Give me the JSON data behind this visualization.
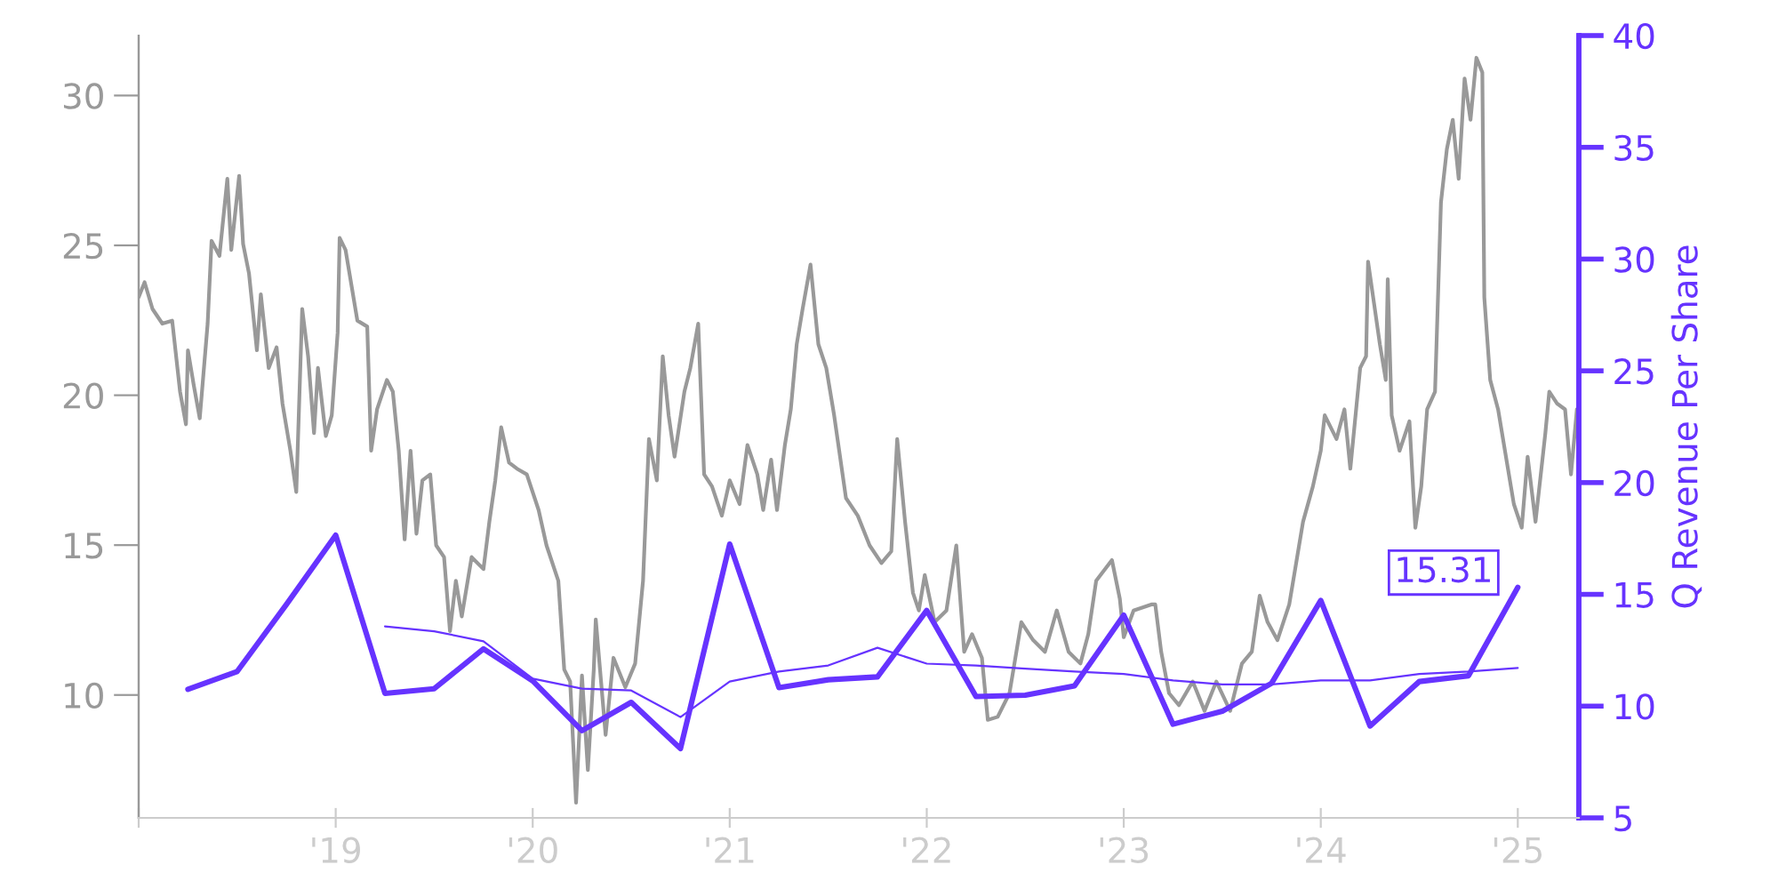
{
  "chart_data": {
    "type": "line",
    "y2label": "Q Revenue Per Share",
    "series": [
      {
        "color": "#999999",
        "x": [
          2018.0,
          2018.03,
          2018.07,
          2018.12,
          2018.17,
          2018.21,
          2018.24,
          2018.25,
          2018.28,
          2018.31,
          2018.35,
          2018.37,
          2018.41,
          2018.45,
          2018.47,
          2018.51,
          2018.53,
          2018.56,
          2018.6,
          2018.62,
          2018.66,
          2018.7,
          2018.73,
          2018.77,
          2018.8,
          2018.83,
          2018.86,
          2018.89,
          2018.91,
          2018.95,
          2018.98,
          2019.01,
          2019.02,
          2019.05,
          2019.08,
          2019.11,
          2019.16,
          2019.18,
          2019.21,
          2019.26,
          2019.29,
          2019.32,
          2019.35,
          2019.38,
          2019.41,
          2019.44,
          2019.48,
          2019.51,
          2019.55,
          2019.58,
          2019.61,
          2019.64,
          2019.69,
          2019.75,
          2019.78,
          2019.81,
          2019.84,
          2019.88,
          2019.92,
          2019.97,
          2020.03,
          2020.07,
          2020.13,
          2020.16,
          2020.19,
          2020.22,
          2020.25,
          2020.28,
          2020.31,
          2020.32,
          2020.37,
          2020.41,
          2020.47,
          2020.52,
          2020.56,
          2020.59,
          2020.63,
          2020.66,
          2020.69,
          2020.72,
          2020.77,
          2020.8,
          2020.84,
          2020.87,
          2020.91,
          2020.96,
          2021.0,
          2021.05,
          2021.09,
          2021.14,
          2021.17,
          2021.21,
          2021.24,
          2021.28,
          2021.31,
          2021.34,
          2021.37,
          2021.41,
          2021.45,
          2021.49,
          2021.53,
          2021.59,
          2021.65,
          2021.71,
          2021.77,
          2021.82,
          2021.85,
          2021.89,
          2021.93,
          2021.96,
          2021.99,
          2022.04,
          2022.1,
          2022.15,
          2022.19,
          2022.23,
          2022.28,
          2022.31,
          2022.36,
          2022.42,
          2022.48,
          2022.54,
          2022.6,
          2022.66,
          2022.72,
          2022.78,
          2022.82,
          2022.86,
          2022.94,
          2022.98,
          2023.0,
          2023.05,
          2023.14,
          2023.16,
          2023.19,
          2023.23,
          2023.28,
          2023.35,
          2023.41,
          2023.47,
          2023.54,
          2023.6,
          2023.65,
          2023.69,
          2023.73,
          2023.78,
          2023.84,
          2023.87,
          2023.91,
          2023.96,
          2024.0,
          2024.02,
          2024.08,
          2024.12,
          2024.15,
          2024.2,
          2024.23,
          2024.24,
          2024.27,
          2024.3,
          2024.33,
          2024.34,
          2024.36,
          2024.4,
          2024.45,
          2024.48,
          2024.51,
          2024.54,
          2024.58,
          2024.61,
          2024.64,
          2024.67,
          2024.7,
          2024.73,
          2024.76,
          2024.79,
          2024.82,
          2024.83,
          2024.86,
          2024.9,
          2024.95,
          2024.98,
          2025.02,
          2025.05,
          2025.09,
          2025.14,
          2025.16,
          2025.2,
          2025.24,
          2025.27,
          2025.3
        ],
        "values": [
          23.27,
          23.77,
          22.88,
          22.39,
          22.49,
          20.12,
          19.03,
          21.5,
          20.32,
          19.23,
          22.39,
          25.15,
          24.65,
          27.22,
          24.85,
          27.32,
          25.05,
          24.06,
          21.5,
          23.37,
          20.91,
          21.6,
          19.72,
          18.15,
          16.77,
          22.88,
          21.3,
          18.74,
          20.91,
          18.64,
          19.33,
          22.09,
          25.25,
          24.85,
          23.67,
          22.49,
          22.29,
          18.15,
          19.53,
          20.51,
          20.12,
          18.15,
          15.19,
          18.15,
          15.38,
          17.16,
          17.36,
          14.99,
          14.6,
          12.13,
          13.81,
          12.62,
          14.6,
          14.2,
          15.78,
          17.16,
          18.93,
          17.75,
          17.55,
          17.36,
          16.17,
          14.99,
          13.81,
          10.85,
          10.45,
          6.41,
          10.65,
          7.5,
          10.85,
          12.52,
          8.67,
          11.24,
          10.26,
          11.05,
          13.81,
          18.54,
          17.16,
          21.3,
          19.33,
          17.95,
          20.12,
          20.91,
          22.39,
          17.36,
          16.96,
          15.98,
          17.16,
          16.37,
          18.34,
          17.36,
          16.17,
          17.85,
          16.17,
          18.34,
          19.53,
          21.7,
          22.88,
          24.36,
          21.7,
          20.91,
          19.33,
          16.57,
          15.98,
          14.99,
          14.4,
          14.79,
          18.54,
          15.78,
          13.41,
          12.82,
          14.0,
          12.43,
          12.82,
          14.99,
          11.44,
          12.03,
          11.24,
          9.17,
          9.27,
          10.06,
          12.43,
          11.83,
          11.44,
          12.82,
          11.44,
          11.05,
          12.03,
          13.81,
          14.5,
          13.21,
          11.93,
          12.82,
          13.02,
          13.02,
          11.44,
          10.06,
          9.66,
          10.45,
          9.47,
          10.45,
          9.47,
          11.05,
          11.44,
          13.31,
          12.43,
          11.83,
          13.02,
          14.2,
          15.78,
          16.96,
          18.15,
          19.33,
          18.54,
          19.53,
          17.55,
          20.91,
          21.3,
          24.46,
          23.08,
          21.7,
          20.51,
          23.87,
          19.33,
          18.15,
          19.13,
          15.58,
          16.96,
          19.53,
          20.12,
          26.43,
          28.21,
          29.19,
          27.22,
          30.57,
          29.19,
          31.26,
          30.77,
          23.27,
          20.51,
          19.53,
          17.55,
          16.37,
          15.58,
          17.95,
          15.78,
          18.74,
          20.12,
          19.72,
          19.53,
          17.36,
          19.53
        ]
      },
      {
        "color": "#6633ff",
        "axis": "y2",
        "x": [
          2018.25,
          2018.5,
          2018.75,
          2019.0,
          2019.25,
          2019.5,
          2019.75,
          2020.0,
          2020.25,
          2020.5,
          2020.75,
          2021.0,
          2021.25,
          2021.5,
          2021.75,
          2022.0,
          2022.25,
          2022.5,
          2022.75,
          2023.0,
          2023.25,
          2023.5,
          2023.75,
          2024.0,
          2024.25,
          2024.5,
          2024.75,
          2025.0
        ],
        "values": [
          10.75,
          11.55,
          14.55,
          17.65,
          10.57,
          10.78,
          12.56,
          11.13,
          8.9,
          10.17,
          8.1,
          17.25,
          10.83,
          11.18,
          11.31,
          14.28,
          10.43,
          10.49,
          10.91,
          14.07,
          9.19,
          9.77,
          11.02,
          14.73,
          9.11,
          11.1,
          11.36,
          15.31
        ],
        "value_labels": [
          null,
          null,
          null,
          null,
          null,
          null,
          null,
          null,
          null,
          null,
          null,
          null,
          null,
          null,
          null,
          null,
          null,
          null,
          null,
          null,
          null,
          null,
          null,
          null,
          null,
          null,
          null,
          "15.31"
        ]
      },
      {
        "color": "#6633ff",
        "axis": "y2",
        "x": [
          2019.25,
          2019.5,
          2019.75,
          2020.0,
          2020.25,
          2020.5,
          2020.75,
          2021.0,
          2021.25,
          2021.5,
          2021.75,
          2022.0,
          2022.25,
          2022.5,
          2022.75,
          2023.0,
          2023.25,
          2023.5,
          2023.75,
          2024.0,
          2024.25,
          2024.5,
          2024.75,
          2025.0
        ],
        "values": [
          13.57,
          13.35,
          12.9,
          11.23,
          10.78,
          10.7,
          9.51,
          11.1,
          11.55,
          11.82,
          12.61,
          11.9,
          11.82,
          11.68,
          11.55,
          11.44,
          11.15,
          10.97,
          10.97,
          11.15,
          11.15,
          11.44,
          11.55,
          11.71
        ]
      }
    ],
    "xlim": [
      2018.0,
      2025.31
    ],
    "xticks": [
      {
        "value": 2018,
        "label": null
      },
      {
        "value": 2019,
        "label": "'19"
      },
      {
        "value": 2020,
        "label": "'20"
      },
      {
        "value": 2021,
        "label": "'21"
      },
      {
        "value": 2022,
        "label": "'22"
      },
      {
        "value": 2023,
        "label": "'23"
      },
      {
        "value": 2024,
        "label": "'24"
      },
      {
        "value": 2025,
        "label": "'25"
      }
    ],
    "ylim": [
      5.9,
      32.0
    ],
    "yticks": [
      10,
      15,
      20,
      25,
      30
    ],
    "y2lim": [
      5,
      40
    ],
    "y2ticks": [
      5,
      10,
      15,
      20,
      25,
      30,
      35,
      40
    ],
    "grid": false,
    "legend": false
  }
}
